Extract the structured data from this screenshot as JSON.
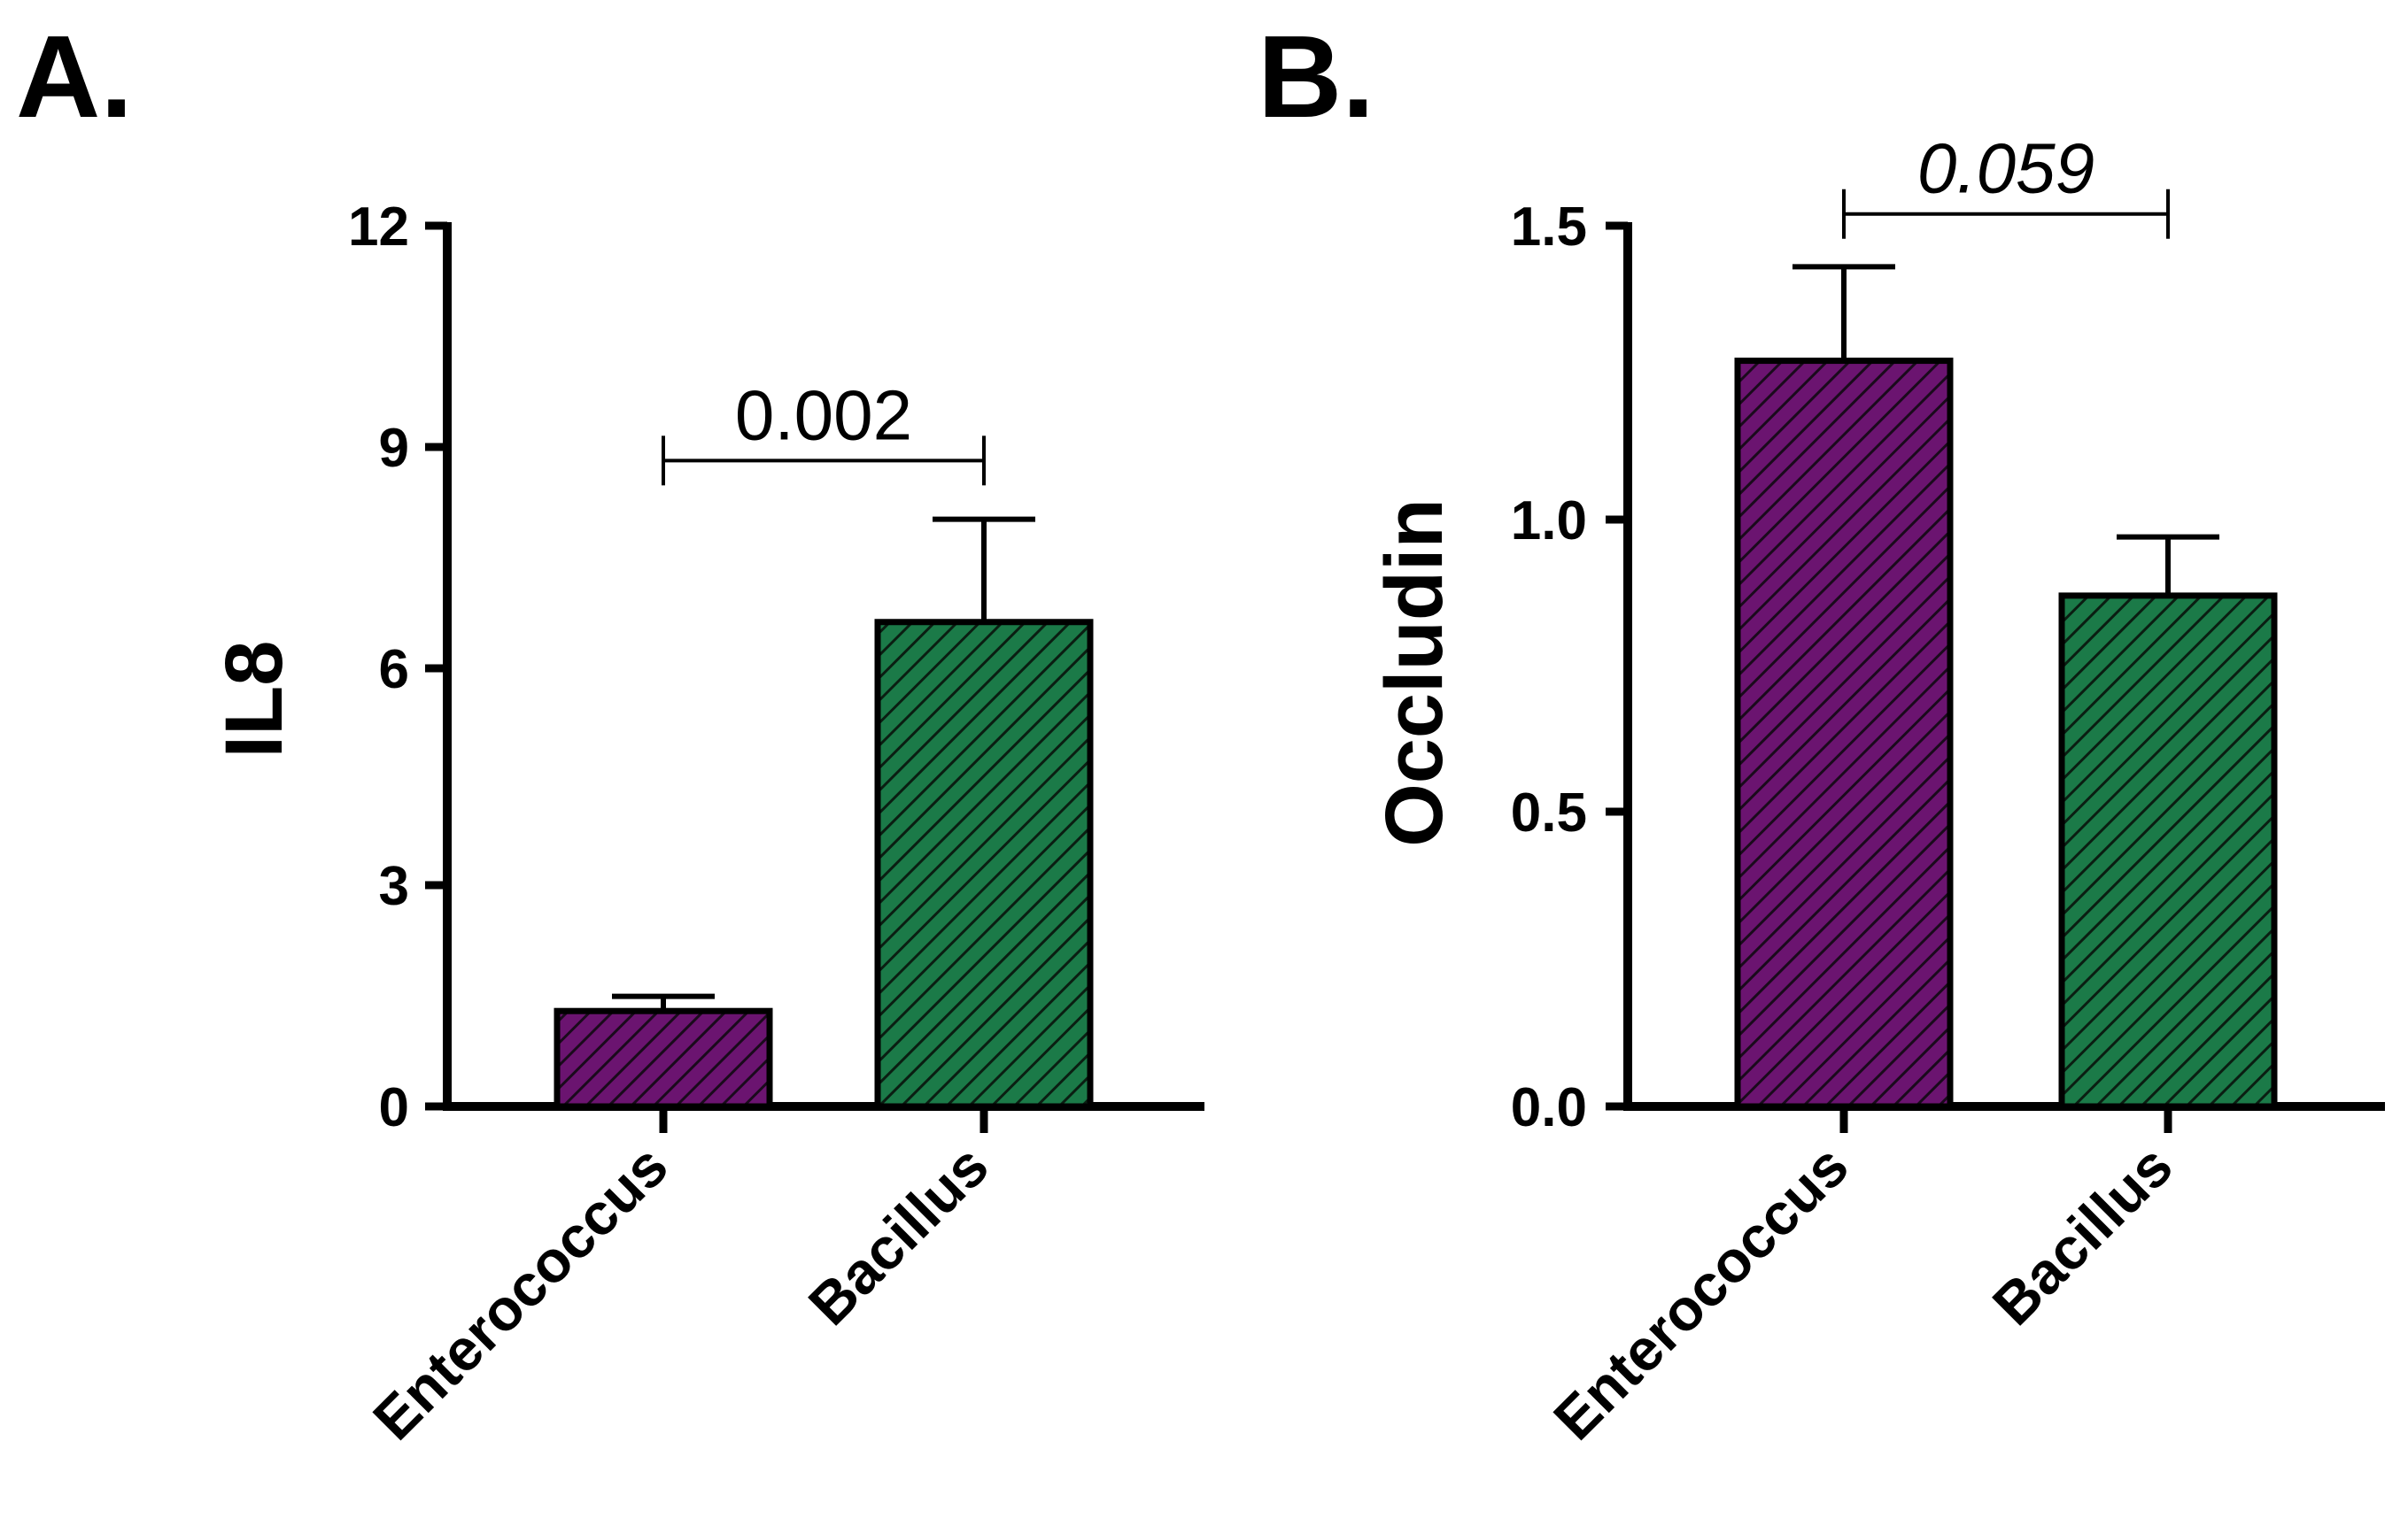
{
  "colors": {
    "enterococcus": "#6b1470",
    "bacillus": "#1b7a48",
    "axis": "#000000"
  },
  "chart_data": [
    {
      "type": "bar",
      "panel_label": "A.",
      "categories": [
        "Enterococcus",
        "Bacillus"
      ],
      "values": [
        1.3,
        6.6
      ],
      "errors": [
        0.2,
        1.4
      ],
      "xlabel": "",
      "ylabel": "IL8",
      "ylim": [
        0,
        12
      ],
      "yticks": [
        "0",
        "3",
        "6",
        "9",
        "12"
      ],
      "ytick_values": [
        0,
        3,
        6,
        9,
        12
      ],
      "significance": {
        "label": "0.002",
        "italic": false,
        "bracket_y": 8.8
      },
      "grid": false
    },
    {
      "type": "bar",
      "panel_label": "B.",
      "categories": [
        "Enterococcus",
        "Bacillus"
      ],
      "values": [
        1.27,
        0.87
      ],
      "errors": [
        0.16,
        0.1
      ],
      "xlabel": "",
      "ylabel": "Occludin",
      "ylim": [
        0,
        1.5
      ],
      "yticks": [
        "0.0",
        "0.5",
        "1.0",
        "1.5"
      ],
      "ytick_values": [
        0,
        0.5,
        1.0,
        1.5
      ],
      "significance": {
        "label": "0.059",
        "italic": true,
        "bracket_y": 1.52
      },
      "grid": false
    }
  ]
}
